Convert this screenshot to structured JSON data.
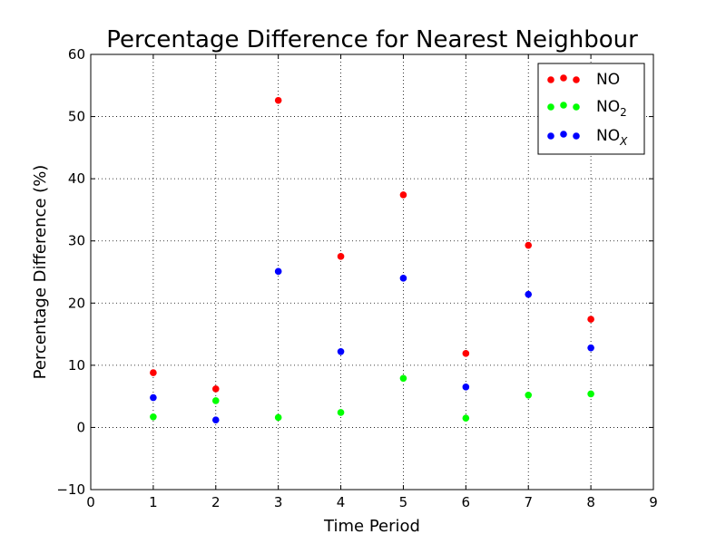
{
  "chart_data": {
    "type": "scatter",
    "title": "Percentage Difference for Nearest Neighbour",
    "xlabel": "Time Period",
    "ylabel": "Percentage Difference (%)",
    "xlim": [
      0,
      9
    ],
    "ylim": [
      -10,
      60
    ],
    "xticks": [
      "0",
      "1",
      "2",
      "3",
      "4",
      "5",
      "6",
      "7",
      "8",
      "9"
    ],
    "yticks": [
      "−10",
      "0",
      "10",
      "20",
      "30",
      "40",
      "50",
      "60"
    ],
    "grid": true,
    "legend_position": "top-right",
    "series": [
      {
        "name": "NO",
        "color": "#ff0000",
        "x": [
          1,
          2,
          3,
          4,
          5,
          6,
          7,
          8
        ],
        "y": [
          8.8,
          6.2,
          52.6,
          27.5,
          37.4,
          11.9,
          29.3,
          17.4
        ]
      },
      {
        "name": "NO",
        "name_subscript": "2",
        "color": "#00ff00",
        "x": [
          1,
          2,
          3,
          4,
          5,
          6,
          7,
          8
        ],
        "y": [
          1.7,
          4.3,
          1.6,
          2.4,
          7.9,
          1.5,
          5.2,
          5.4
        ]
      },
      {
        "name": "NO",
        "name_subscript": "X",
        "color": "#0000ff",
        "x": [
          1,
          2,
          3,
          4,
          5,
          6,
          7,
          8
        ],
        "y": [
          4.8,
          1.2,
          25.1,
          12.2,
          24.0,
          6.5,
          21.4,
          12.8
        ]
      }
    ]
  }
}
